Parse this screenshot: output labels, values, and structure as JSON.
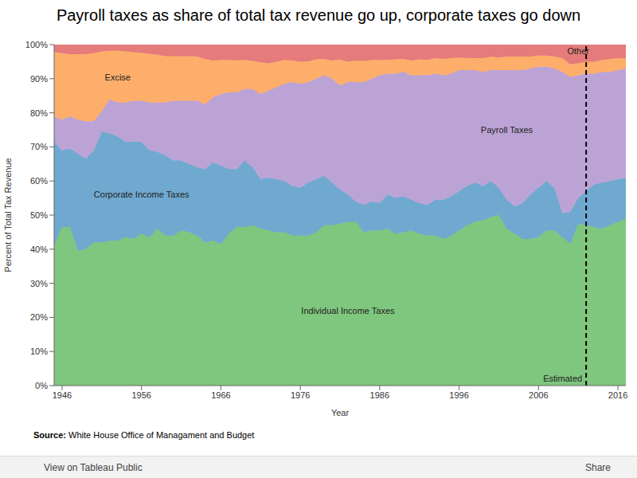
{
  "chart_data": {
    "type": "area",
    "stacked": true,
    "title": "Payroll taxes as share of total tax revenue go up, corporate taxes go down",
    "x_label": "Year",
    "y_label": "Percent of Total Tax Revenue",
    "x": [
      1945,
      1946,
      1947,
      1948,
      1949,
      1950,
      1951,
      1952,
      1953,
      1954,
      1955,
      1956,
      1957,
      1958,
      1959,
      1960,
      1961,
      1962,
      1963,
      1964,
      1965,
      1966,
      1967,
      1968,
      1969,
      1970,
      1971,
      1972,
      1973,
      1974,
      1975,
      1976,
      1977,
      1978,
      1979,
      1980,
      1981,
      1982,
      1983,
      1984,
      1985,
      1986,
      1987,
      1988,
      1989,
      1990,
      1991,
      1992,
      1993,
      1994,
      1995,
      1996,
      1997,
      1998,
      1999,
      2000,
      2001,
      2002,
      2003,
      2004,
      2005,
      2006,
      2007,
      2008,
      2009,
      2010,
      2011,
      2012,
      2013,
      2014,
      2015,
      2016,
      2017
    ],
    "series": [
      {
        "name": "Individual Income Taxes",
        "color": "#7fc67e",
        "values": [
          41,
          46.5,
          46.5,
          39.5,
          40,
          42,
          42,
          42.5,
          42.5,
          43.5,
          43,
          44.5,
          43.5,
          46,
          44,
          44,
          45.5,
          45,
          44,
          42,
          42.5,
          41.5,
          44.5,
          46.5,
          46.5,
          47,
          46,
          45.5,
          45,
          45,
          44,
          44,
          44,
          45,
          47,
          47,
          47.5,
          48,
          48,
          45,
          45.5,
          45.5,
          46,
          44.5,
          45,
          45.5,
          44.5,
          44,
          44,
          43,
          44,
          45.5,
          47,
          48,
          48.5,
          49.5,
          50,
          46,
          44.5,
          43,
          43,
          43.5,
          45.5,
          45.5,
          43.5,
          41.5,
          47.5,
          47,
          46.5,
          46,
          47,
          48,
          49
        ]
      },
      {
        "name": "Corporate Income Taxes",
        "color": "#6fa9d0",
        "values": [
          30.5,
          22.5,
          23,
          28.5,
          26.5,
          27,
          32.5,
          31.5,
          30.5,
          28,
          28.5,
          27,
          25.5,
          22.5,
          23.5,
          22,
          20.5,
          20,
          20,
          21.5,
          23,
          23,
          19,
          17,
          19.5,
          17,
          14.5,
          15.5,
          15.5,
          15,
          14.5,
          14,
          15.5,
          15.5,
          14.5,
          12.5,
          10,
          8,
          6,
          8,
          8.5,
          8,
          10,
          10.5,
          10.5,
          9,
          9,
          9,
          10.5,
          11.5,
          11.5,
          11.5,
          11.5,
          11.5,
          10,
          10.5,
          8,
          8.5,
          8,
          10.5,
          13,
          14.5,
          14.5,
          12.5,
          7,
          9.5,
          7.5,
          10,
          12.5,
          13.5,
          13,
          12.5,
          12
        ]
      },
      {
        "name": "Payroll Taxes",
        "color": "#bca3d6",
        "values": [
          7.5,
          9,
          9.5,
          10,
          11,
          8.5,
          6,
          10,
          10,
          11.5,
          12,
          12,
          14,
          14.5,
          15.5,
          17.5,
          17.5,
          18.5,
          19.5,
          19,
          19,
          21,
          22.5,
          22.5,
          21,
          23,
          25,
          25.5,
          27,
          28.5,
          30.5,
          30.5,
          29.5,
          29.5,
          29.5,
          30.5,
          30.5,
          33,
          35,
          36,
          36,
          37.5,
          35.5,
          36.5,
          36.5,
          36.5,
          37.5,
          38,
          37,
          36.5,
          36,
          35.5,
          34,
          33,
          33.5,
          32.5,
          34.5,
          38,
          40,
          39,
          37,
          35.5,
          33.5,
          35,
          41.5,
          39.5,
          36,
          34.5,
          32.5,
          32.5,
          32,
          32,
          32
        ]
      },
      {
        "name": "Excise",
        "color": "#fdae6b",
        "values": [
          18.8,
          19.5,
          18.2,
          19.2,
          19.7,
          20,
          17.5,
          14.2,
          15.2,
          15,
          14.3,
          14.1,
          14.3,
          14,
          13.6,
          13.1,
          13.1,
          13.1,
          13,
          13.3,
          10.8,
          10,
          9.5,
          9.4,
          8.5,
          8.2,
          9.3,
          8,
          7.5,
          7,
          6.3,
          6.5,
          6.1,
          5.7,
          4.8,
          5.3,
          7.6,
          6,
          6.3,
          6.2,
          5.5,
          4.5,
          4,
          4.2,
          3.8,
          4.3,
          4.7,
          4.5,
          4.5,
          4.8,
          4.5,
          3.7,
          3.5,
          3.5,
          4,
          4,
          3.7,
          4,
          4,
          4,
          3.5,
          3.3,
          3.3,
          3.5,
          4,
          3.7,
          3.5,
          3.5,
          3.5,
          3.5,
          3.8,
          3.5,
          3
        ]
      },
      {
        "name": "Other",
        "color": "#e57b7b",
        "values": [
          2.2,
          2.5,
          2.8,
          2.8,
          2.8,
          2.5,
          2,
          1.8,
          1.8,
          2,
          2.2,
          2.4,
          2.7,
          3,
          3.4,
          3.4,
          3.4,
          3.4,
          3.5,
          4.2,
          4.7,
          4.5,
          4.5,
          4.6,
          4.5,
          4.8,
          5.2,
          5.5,
          5,
          4.5,
          4.7,
          5,
          4.9,
          4.3,
          4.2,
          4.7,
          4.4,
          5,
          4.7,
          4.8,
          4.5,
          4.5,
          4.5,
          4.3,
          4.2,
          4.7,
          4.3,
          4.5,
          4,
          4.2,
          4,
          3.8,
          4,
          4,
          4,
          3.5,
          3.8,
          3.5,
          3.5,
          3.5,
          3.5,
          3.2,
          3.2,
          3.5,
          4,
          5.8,
          5.5,
          5,
          5,
          4.5,
          4.2,
          4,
          4
        ]
      }
    ],
    "xlim": [
      1945,
      2017
    ],
    "xticks": [
      1946,
      1956,
      1966,
      1976,
      1986,
      1996,
      2006,
      2016
    ],
    "ylim": [
      0,
      100
    ],
    "yticks": [
      {
        "value": 0,
        "label": "0%"
      },
      {
        "value": 10,
        "label": "10%"
      },
      {
        "value": 20,
        "label": "20%"
      },
      {
        "value": 30,
        "label": "30%"
      },
      {
        "value": 40,
        "label": "40%"
      },
      {
        "value": 50,
        "label": "50%"
      },
      {
        "value": 60,
        "label": "60%"
      },
      {
        "value": 70,
        "label": "70%"
      },
      {
        "value": 80,
        "label": "80%"
      },
      {
        "value": 90,
        "label": "90%"
      },
      {
        "value": 100,
        "label": "100%"
      }
    ],
    "annotation": {
      "text": "Estimated",
      "x": 2012
    },
    "source_label": "Source:",
    "source": "White House Office of Managament and Budget",
    "footer": {
      "left": "View on Tableau Public",
      "right": "Share"
    }
  }
}
